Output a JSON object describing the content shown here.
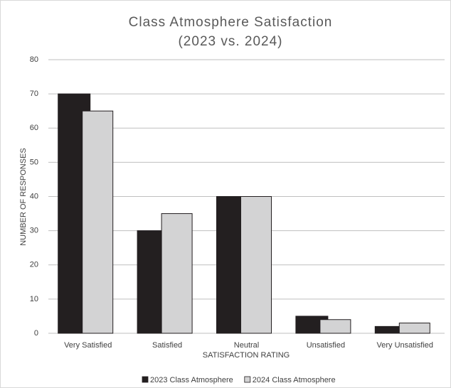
{
  "chart_data": {
    "type": "bar",
    "title": "Class Atmosphere Satisfaction",
    "subtitle": "(2023 vs. 2024)",
    "x_label": "SATISFACTION  RATING",
    "y_label": "NUMBER OF RESPONSES",
    "categories": [
      "Very  Satisfied",
      "Satisfied",
      "Neutral",
      "Unsatisfied",
      "Very  Unsatisfied"
    ],
    "series": [
      {
        "name": "2023 Class Atmosphere",
        "color": "#231f20",
        "values": [
          70,
          30,
          40,
          5,
          2
        ]
      },
      {
        "name": "2024 Class Atmosphere",
        "color": "#d3d3d4",
        "values": [
          65,
          35,
          40,
          4,
          3
        ]
      }
    ],
    "ylim": [
      0,
      80
    ],
    "yticks": [
      0,
      10,
      20,
      30,
      40,
      50,
      60,
      70,
      80
    ],
    "grid": true,
    "legend": "bottom"
  }
}
